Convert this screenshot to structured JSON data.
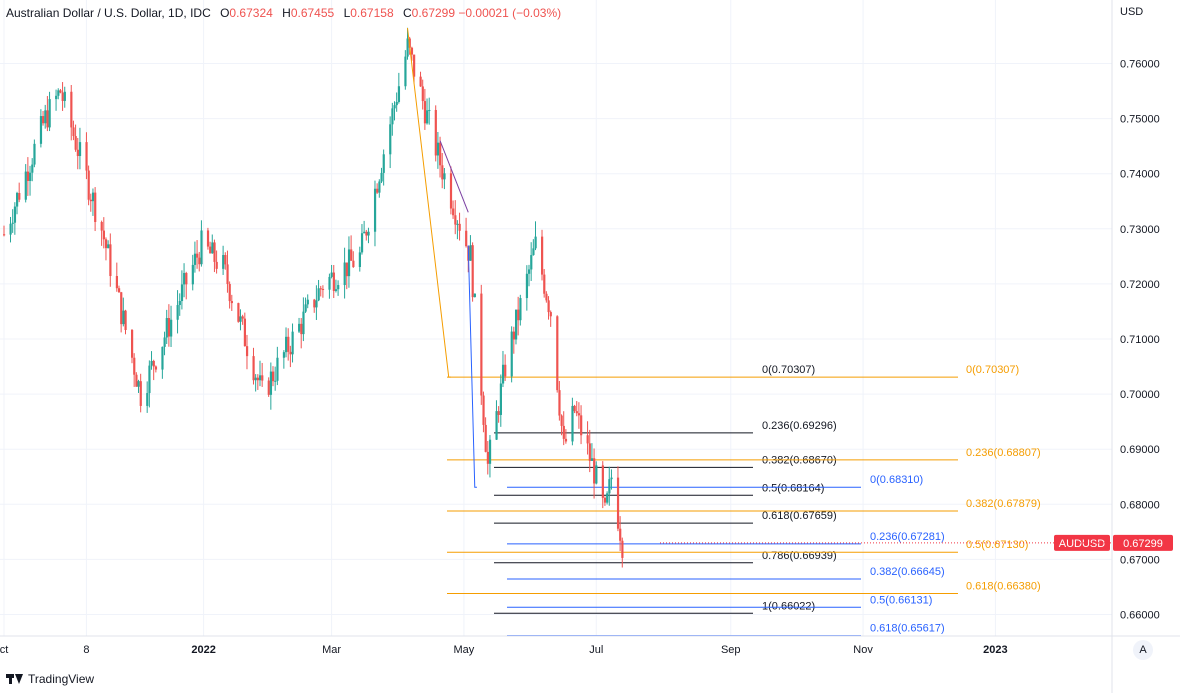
{
  "legend": {
    "symbol": "Australian Dollar / U.S. Dollar, 1D, IDC",
    "open_label": "O",
    "open": "0.67324",
    "high_label": "H",
    "high": "0.67455",
    "low_label": "L",
    "low": "0.67158",
    "close_label": "C",
    "close": "0.67299",
    "change": "−0.00021 (−0.03%)"
  },
  "price_axis": {
    "currency": "USD",
    "ticks": [
      "0.76000",
      "0.75000",
      "0.74000",
      "0.73000",
      "0.72000",
      "0.71000",
      "0.70000",
      "0.69000",
      "0.68000",
      "0.67000",
      "0.66000"
    ]
  },
  "time_axis": {
    "ticks": [
      "ct",
      "8",
      "2022",
      "Mar",
      "May",
      "Jul",
      "Sep",
      "Nov",
      "2023"
    ]
  },
  "price_tag": {
    "symbol": "AUDUSD",
    "value": "0.67299"
  },
  "branding": "TradingView",
  "scale_button": "A",
  "colors": {
    "up": "#26a69a",
    "down": "#ef5350",
    "fib_black": "#131722",
    "fib_orange": "#f59d00",
    "fib_blue": "#2962ff",
    "grid": "#f0f3fa",
    "axis_text": "#131722"
  },
  "chart_data": {
    "type": "candlestick",
    "symbol": "AUDUSD",
    "interval": "1D",
    "ylim": [
      0.6565,
      0.7665
    ],
    "grid": true,
    "series_points": [
      {
        "x": "2021-10-01",
        "y": 0.729
      },
      {
        "x": "2021-10-20",
        "y": 0.75
      },
      {
        "x": "2021-10-27",
        "y": 0.755
      },
      {
        "x": "2021-11-15",
        "y": 0.73
      },
      {
        "x": "2021-12-03",
        "y": 0.7
      },
      {
        "x": "2021-12-31",
        "y": 0.727
      },
      {
        "x": "2022-01-10",
        "y": 0.723
      },
      {
        "x": "2022-01-28",
        "y": 0.7
      },
      {
        "x": "2022-02-25",
        "y": 0.72
      },
      {
        "x": "2022-03-14",
        "y": 0.725
      },
      {
        "x": "2022-04-05",
        "y": 0.763
      },
      {
        "x": "2022-04-20",
        "y": 0.742
      },
      {
        "x": "2022-05-04",
        "y": 0.725
      },
      {
        "x": "2022-05-12",
        "y": 0.687
      },
      {
        "x": "2022-05-20",
        "y": 0.705
      },
      {
        "x": "2022-06-03",
        "y": 0.727
      },
      {
        "x": "2022-06-10",
        "y": 0.715
      },
      {
        "x": "2022-06-16",
        "y": 0.69
      },
      {
        "x": "2022-06-21",
        "y": 0.697
      },
      {
        "x": "2022-06-30",
        "y": 0.686
      },
      {
        "x": "2022-07-05",
        "y": 0.678
      },
      {
        "x": "2022-07-08",
        "y": 0.685
      },
      {
        "x": "2022-07-13",
        "y": 0.673
      }
    ],
    "last": {
      "open": 0.67324,
      "high": 0.67455,
      "low": 0.67158,
      "close": 0.67299
    },
    "fib_retracements": [
      {
        "name": "black",
        "levels": [
          {
            "label": "0(0.70307)",
            "value": 0.70307
          },
          {
            "label": "0.236(0.69296)",
            "value": 0.69296
          },
          {
            "label": "0.382(0.68670)",
            "value": 0.6867
          },
          {
            "label": "0.5(0.68164)",
            "value": 0.68164
          },
          {
            "label": "0.618(0.67659)",
            "value": 0.67659
          },
          {
            "label": "0.786(0.66939)",
            "value": 0.66939
          },
          {
            "label": "1(0.66022)",
            "value": 0.66022
          }
        ]
      },
      {
        "name": "orange",
        "levels": [
          {
            "label": "0(0.70307)",
            "value": 0.70307
          },
          {
            "label": "0.236(0.68807)",
            "value": 0.68807
          },
          {
            "label": "0.382(0.67879)",
            "value": 0.67879
          },
          {
            "label": "0.5(0.67130)",
            "value": 0.6713
          },
          {
            "label": "0.618(0.66380)",
            "value": 0.6638
          }
        ]
      },
      {
        "name": "blue",
        "levels": [
          {
            "label": "0(0.68310)",
            "value": 0.6831
          },
          {
            "label": "0.236(0.67281)",
            "value": 0.67281
          },
          {
            "label": "0.382(0.66645)",
            "value": 0.66645
          },
          {
            "label": "0.5(0.66131)",
            "value": 0.66131
          },
          {
            "label": "0.618(0.65617)",
            "value": 0.65617
          }
        ]
      }
    ]
  }
}
